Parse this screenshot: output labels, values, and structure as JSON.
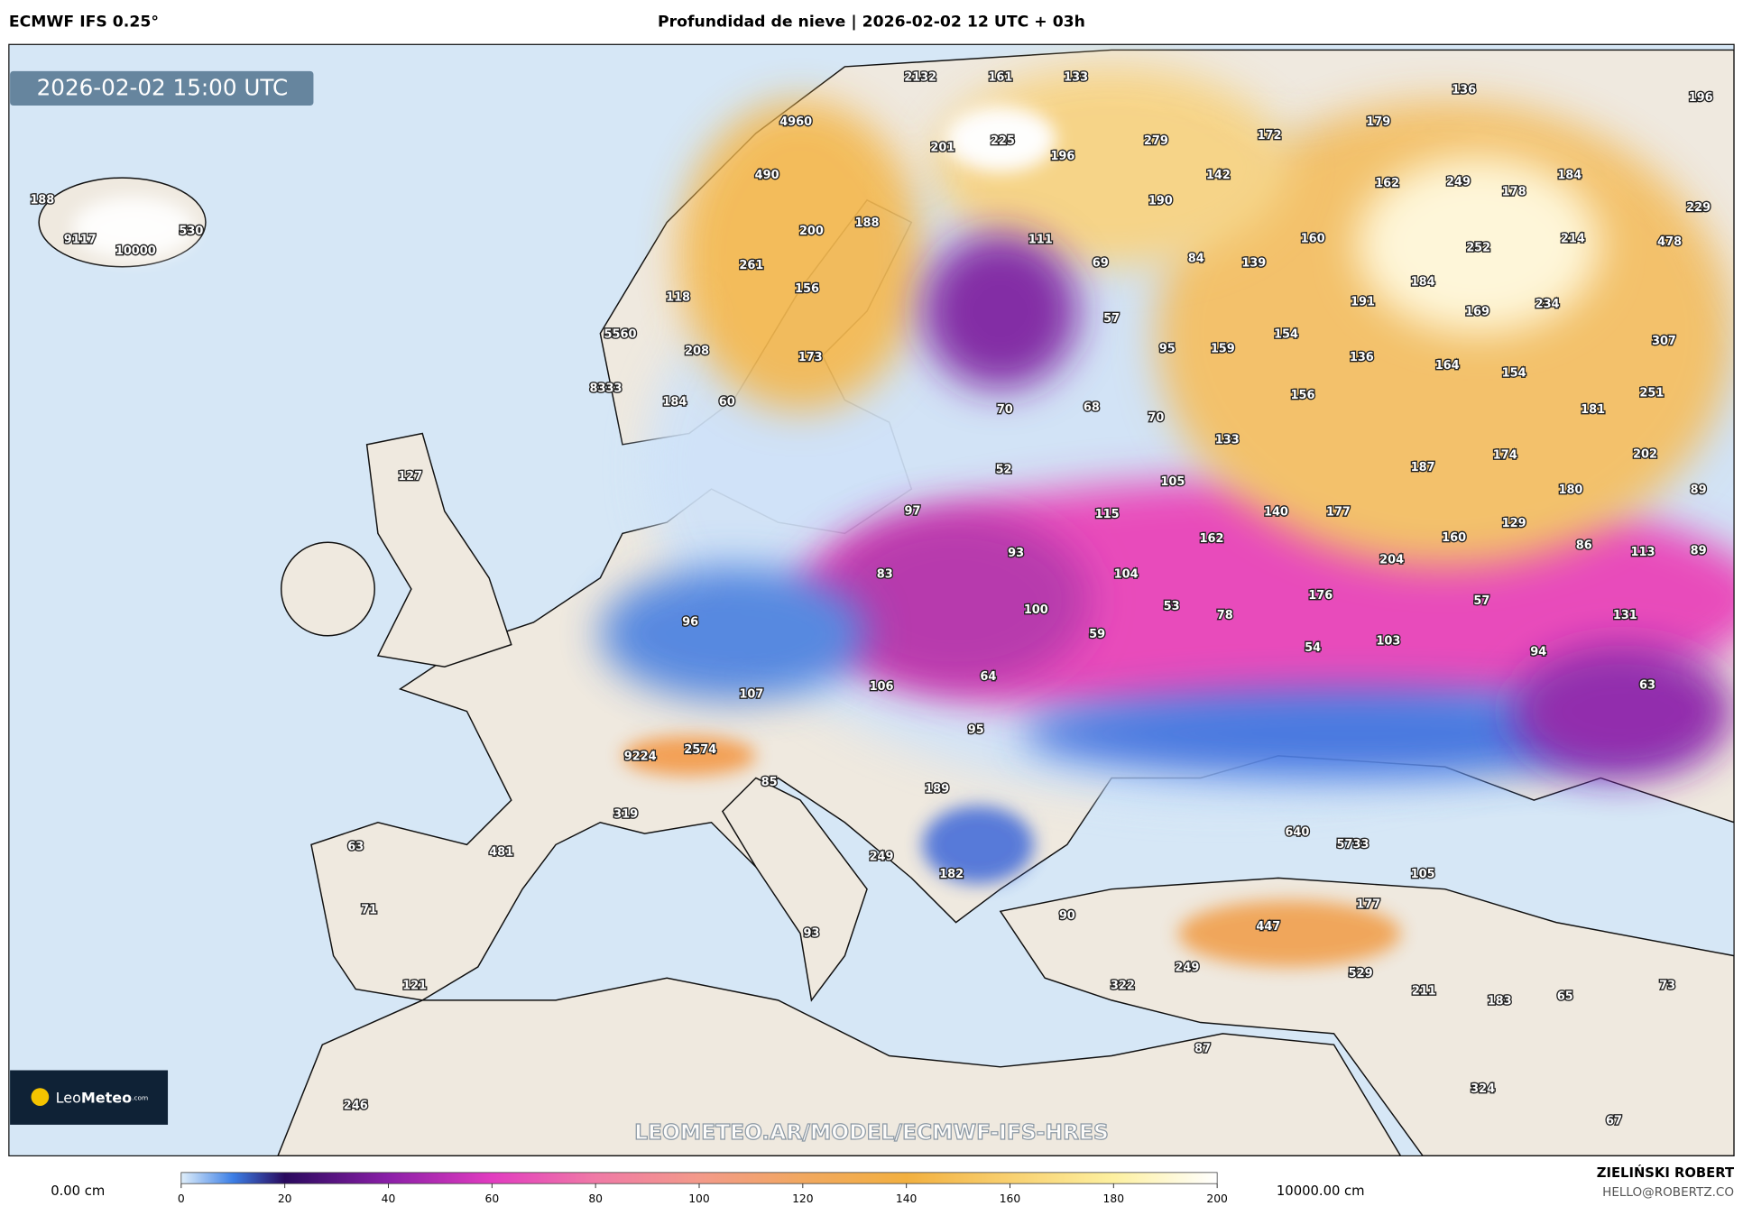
{
  "header": {
    "left_title": "ECMWF IFS 0.25°",
    "title": "Profundidad de nieve | 2026-02-02 12 UTC + 03h"
  },
  "timestamp": "2026-02-02 15:00 UTC",
  "map_labels": [
    2132,
    161,
    133,
    136,
    196,
    4960,
    179,
    172,
    279,
    201,
    225,
    196,
    490,
    142,
    249,
    184,
    178,
    162,
    188,
    190,
    229,
    530,
    200,
    188,
    111,
    160,
    252,
    214,
    478,
    9117,
    10000,
    84,
    139,
    261,
    69,
    184,
    156,
    118,
    191,
    169,
    234,
    57,
    5560,
    154,
    208,
    95,
    159,
    307,
    173,
    136,
    164,
    154,
    8333,
    156,
    251,
    184,
    60,
    70,
    68,
    70,
    181,
    133,
    202,
    174,
    127,
    52,
    187,
    105,
    180,
    89,
    97,
    115,
    140,
    177,
    129,
    162,
    160,
    86,
    113,
    89,
    93,
    204,
    83,
    104,
    176,
    57,
    100,
    53,
    78,
    131,
    96,
    59,
    54,
    103,
    94,
    64,
    106,
    63,
    107,
    95,
    2574,
    9224,
    85,
    189,
    319,
    640,
    5733,
    63,
    481,
    249,
    105,
    182,
    177,
    71,
    90,
    447,
    93,
    249,
    529,
    322,
    121,
    211,
    183,
    65,
    73,
    87,
    324,
    246,
    67
  ],
  "watermark": "LEOMETEO.AR/MODEL/ECMWF-IFS-HRES",
  "logo": {
    "light": "Leo",
    "bold": "Meteo",
    "suffix": ".com"
  },
  "colorbar": {
    "min_label": "0.00 cm",
    "max_label": "10000.00 cm",
    "ticks": [
      0,
      20,
      40,
      60,
      80,
      100,
      120,
      140,
      160,
      180,
      200
    ]
  },
  "credits": {
    "name": "ZIELIŃSKI ROBERT",
    "email": "HELLO@ROBERTZ.CO"
  }
}
